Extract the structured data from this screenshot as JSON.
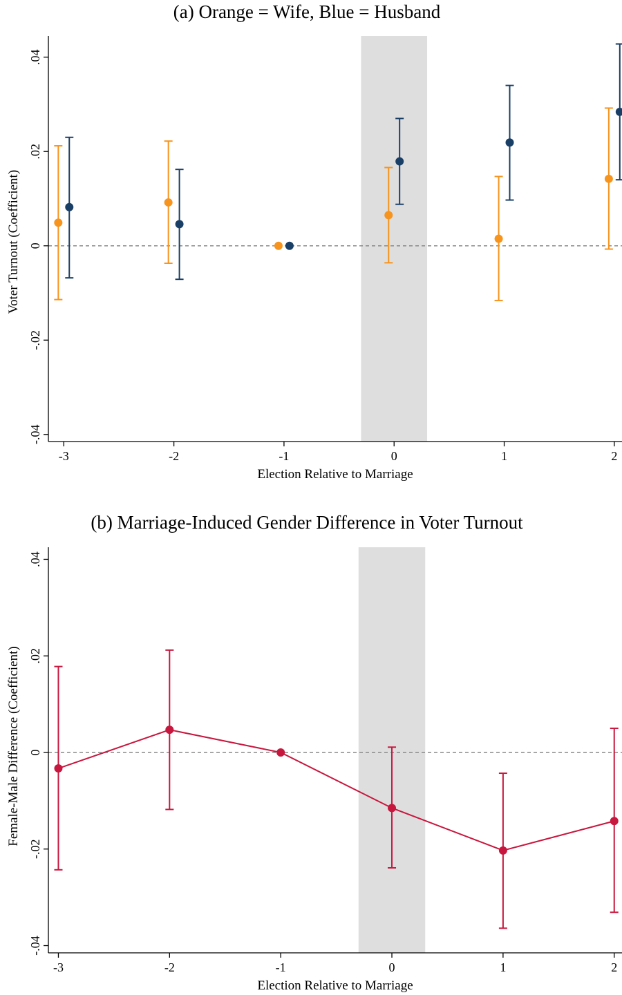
{
  "chart_data": [
    {
      "type": "scatter",
      "title": "(a) Orange = Wife, Blue = Husband",
      "xlabel": "Election Relative to Marriage",
      "ylabel": "Voter Turnout (Coefficient)",
      "x_ticks": [
        -3,
        -2,
        -1,
        0,
        1,
        2
      ],
      "x_tick_labels": [
        "-3",
        "-2",
        "-1",
        "0",
        "1",
        "2"
      ],
      "y_ticks": [
        -0.04,
        -0.02,
        0,
        0.02,
        0.04
      ],
      "y_tick_labels": [
        "-.04",
        "-.02",
        "0",
        ".02",
        ".04"
      ],
      "xlim": [
        -3.14,
        2.07
      ],
      "ylim": [
        -0.0415,
        0.0445
      ],
      "shaded_region": [
        -0.3,
        0.3
      ],
      "reference_line_y": 0,
      "series": [
        {
          "color": "#f7941d",
          "x": [
            -3,
            -2,
            -1,
            0,
            1,
            2
          ],
          "y": [
            0.0049,
            0.0092,
            0.0,
            0.0065,
            0.0015,
            0.0142
          ],
          "ci_low": [
            -0.0114,
            -0.0037,
            null,
            -0.0036,
            -0.0116,
            -0.0007
          ],
          "ci_high": [
            0.0212,
            0.0222,
            null,
            0.0166,
            0.0147,
            0.0292
          ]
        },
        {
          "color": "#1a3f66",
          "x": [
            -3,
            -2,
            -1,
            0,
            1,
            2
          ],
          "y": [
            0.0082,
            0.0046,
            0.0,
            0.0179,
            0.0219,
            0.0284
          ],
          "ci_low": [
            -0.0068,
            -0.0071,
            null,
            0.0088,
            0.0097,
            0.014
          ],
          "ci_high": [
            0.023,
            0.0162,
            null,
            0.027,
            0.034,
            0.0428
          ]
        }
      ]
    },
    {
      "type": "line",
      "title": "(b) Marriage-Induced Gender Difference in Voter Turnout",
      "xlabel": "Election Relative to Marriage",
      "ylabel": "Female-Male Difference (Coefficient)",
      "x_ticks": [
        -3,
        -2,
        -1,
        0,
        1,
        2
      ],
      "x_tick_labels": [
        "-3",
        "-2",
        "-1",
        "0",
        "1",
        "2"
      ],
      "y_ticks": [
        -0.04,
        -0.02,
        0,
        0.02,
        0.04
      ],
      "y_tick_labels": [
        "-.04",
        "-.02",
        "0",
        ".02",
        ".04"
      ],
      "xlim": [
        -3.09,
        2.07
      ],
      "ylim": [
        -0.0415,
        0.0425
      ],
      "shaded_region": [
        -0.3,
        0.3
      ],
      "reference_line_y": 0,
      "series": [
        {
          "color": "#c8173e",
          "x": [
            -3,
            -2,
            -1,
            0,
            1,
            2
          ],
          "y": [
            -0.0033,
            0.0047,
            0.0,
            -0.0115,
            -0.0203,
            -0.0142
          ],
          "ci_low": [
            -0.0243,
            -0.0118,
            null,
            -0.0239,
            -0.0364,
            -0.0331
          ],
          "ci_high": [
            0.0178,
            0.0212,
            null,
            0.0011,
            -0.0043,
            0.005
          ]
        }
      ]
    }
  ]
}
